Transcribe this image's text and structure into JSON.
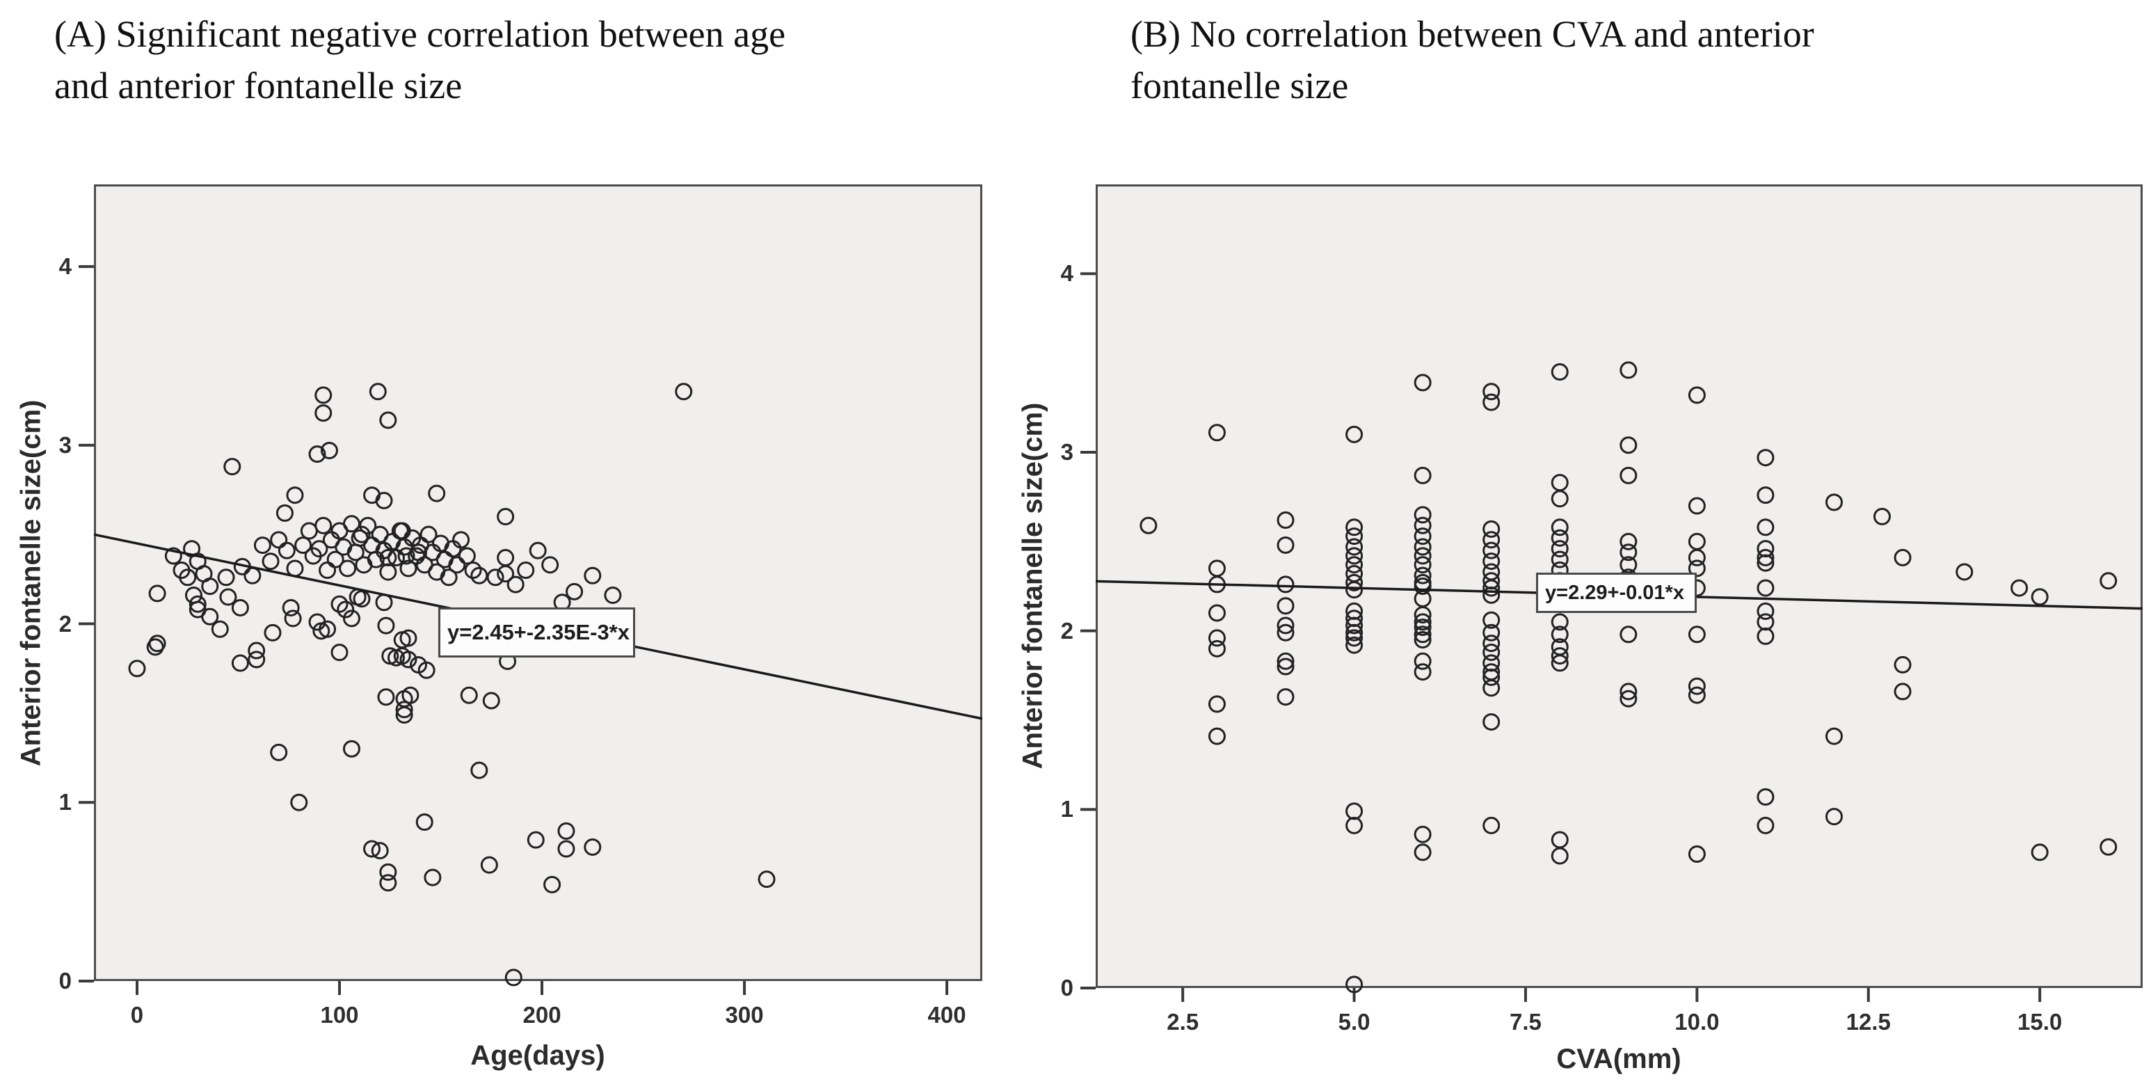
{
  "figure": {
    "background_color": "#ffffff",
    "plot_background_color": "#f0efee",
    "plot_border_color": "#4d4d4d",
    "marker_color": "#222222",
    "line_color": "#1a1a1a",
    "text_color": "#111111"
  },
  "chart_data": [
    {
      "type": "scatter",
      "panel_label": "A",
      "title_lines": [
        "(A) Significant negative correlation between age",
        "and anterior fontanelle size"
      ],
      "xlabel": "Age(days)",
      "ylabel": "Anterior fontanelle size(cm)",
      "x_tick_values": [
        0,
        100,
        200,
        300,
        400
      ],
      "x_tick_labels": [
        "0",
        "100",
        "200",
        "300",
        "400"
      ],
      "y_tick_values": [
        0,
        1,
        2,
        3,
        4
      ],
      "y_tick_labels": [
        "0",
        "1",
        "2",
        "3",
        "4"
      ],
      "xlim": [
        -21.3,
        417.5
      ],
      "ylim": [
        0,
        4.46
      ],
      "grid": false,
      "legend": "none",
      "regression": {
        "label": "y=2.45+-2.35E-3*x",
        "intercept": 2.45,
        "slope": -0.00235
      },
      "points": [
        [
          92,
          3.28
        ],
        [
          92,
          3.18
        ],
        [
          119,
          3.3
        ],
        [
          124,
          3.14
        ],
        [
          270,
          3.3
        ],
        [
          89,
          2.95
        ],
        [
          95,
          2.97
        ],
        [
          47,
          2.88
        ],
        [
          78,
          2.72
        ],
        [
          73,
          2.62
        ],
        [
          116,
          2.72
        ],
        [
          122,
          2.69
        ],
        [
          148,
          2.73
        ],
        [
          182,
          2.6
        ],
        [
          111,
          2.5
        ],
        [
          131,
          2.52
        ],
        [
          27,
          2.42
        ],
        [
          30,
          2.35
        ],
        [
          33,
          2.28
        ],
        [
          25,
          2.26
        ],
        [
          36,
          2.21
        ],
        [
          28,
          2.16
        ],
        [
          44,
          2.26
        ],
        [
          45,
          2.15
        ],
        [
          22,
          2.3
        ],
        [
          18,
          2.38
        ],
        [
          52,
          2.32
        ],
        [
          57,
          2.27
        ],
        [
          62,
          2.44
        ],
        [
          66,
          2.35
        ],
        [
          70,
          2.47
        ],
        [
          74,
          2.41
        ],
        [
          78,
          2.31
        ],
        [
          82,
          2.44
        ],
        [
          85,
          2.52
        ],
        [
          87,
          2.38
        ],
        [
          90,
          2.42
        ],
        [
          92,
          2.55
        ],
        [
          94,
          2.3
        ],
        [
          96,
          2.47
        ],
        [
          98,
          2.36
        ],
        [
          100,
          2.52
        ],
        [
          102,
          2.43
        ],
        [
          104,
          2.31
        ],
        [
          106,
          2.56
        ],
        [
          108,
          2.4
        ],
        [
          110,
          2.48
        ],
        [
          112,
          2.33
        ],
        [
          114,
          2.55
        ],
        [
          116,
          2.44
        ],
        [
          118,
          2.36
        ],
        [
          120,
          2.5
        ],
        [
          122,
          2.41
        ],
        [
          124,
          2.29
        ],
        [
          126,
          2.46
        ],
        [
          128,
          2.37
        ],
        [
          130,
          2.52
        ],
        [
          132,
          2.43
        ],
        [
          134,
          2.31
        ],
        [
          136,
          2.48
        ],
        [
          138,
          2.38
        ],
        [
          140,
          2.44
        ],
        [
          142,
          2.33
        ],
        [
          144,
          2.5
        ],
        [
          146,
          2.4
        ],
        [
          148,
          2.29
        ],
        [
          150,
          2.45
        ],
        [
          152,
          2.36
        ],
        [
          154,
          2.26
        ],
        [
          156,
          2.42
        ],
        [
          158,
          2.33
        ],
        [
          160,
          2.47
        ],
        [
          163,
          2.38
        ],
        [
          166,
          2.3
        ],
        [
          169,
          2.27
        ],
        [
          177,
          2.26
        ],
        [
          124,
          2.37
        ],
        [
          133,
          2.38
        ],
        [
          139,
          2.4
        ],
        [
          182,
          2.37
        ],
        [
          182,
          2.28
        ],
        [
          225,
          2.27
        ],
        [
          216,
          2.18
        ],
        [
          235,
          2.16
        ],
        [
          210,
          2.12
        ],
        [
          187,
          2.22
        ],
        [
          192,
          2.3
        ],
        [
          198,
          2.41
        ],
        [
          204,
          2.33
        ],
        [
          10,
          2.17
        ],
        [
          30,
          2.11
        ],
        [
          30,
          2.08
        ],
        [
          36,
          2.04
        ],
        [
          41,
          1.97
        ],
        [
          51,
          2.09
        ],
        [
          67,
          1.95
        ],
        [
          59,
          1.85
        ],
        [
          59,
          1.8
        ],
        [
          9,
          1.87
        ],
        [
          10,
          1.89
        ],
        [
          0,
          1.75
        ],
        [
          51,
          1.78
        ],
        [
          76,
          2.09
        ],
        [
          77,
          2.03
        ],
        [
          89,
          2.01
        ],
        [
          91,
          1.96
        ],
        [
          94,
          1.97
        ],
        [
          100,
          1.84
        ],
        [
          100,
          2.11
        ],
        [
          103,
          2.08
        ],
        [
          106,
          2.03
        ],
        [
          109,
          2.15
        ],
        [
          111,
          2.14
        ],
        [
          122,
          2.12
        ],
        [
          123,
          1.99
        ],
        [
          125,
          1.82
        ],
        [
          128,
          1.81
        ],
        [
          131,
          1.82
        ],
        [
          134,
          1.8
        ],
        [
          139,
          1.77
        ],
        [
          131,
          1.91
        ],
        [
          134,
          1.92
        ],
        [
          143,
          1.74
        ],
        [
          183,
          1.79
        ],
        [
          132,
          1.58
        ],
        [
          135,
          1.6
        ],
        [
          132,
          1.52
        ],
        [
          132,
          1.49
        ],
        [
          123,
          1.59
        ],
        [
          164,
          1.6
        ],
        [
          175,
          1.57
        ],
        [
          70,
          1.28
        ],
        [
          106,
          1.3
        ],
        [
          80,
          1.0
        ],
        [
          169,
          1.18
        ],
        [
          142,
          0.89
        ],
        [
          116,
          0.74
        ],
        [
          120,
          0.73
        ],
        [
          124,
          0.61
        ],
        [
          124,
          0.55
        ],
        [
          146,
          0.58
        ],
        [
          174,
          0.65
        ],
        [
          197,
          0.79
        ],
        [
          212,
          0.84
        ],
        [
          212,
          0.74
        ],
        [
          225,
          0.75
        ],
        [
          205,
          0.54
        ],
        [
          311,
          0.57
        ],
        [
          186,
          0.02
        ]
      ]
    },
    {
      "type": "scatter",
      "panel_label": "B",
      "title_lines": [
        "(B) No correlation between CVA and anterior",
        "fontanelle size"
      ],
      "xlabel": "CVA(mm)",
      "ylabel": "Anterior fontanelle size(cm)",
      "x_tick_values": [
        2.5,
        5.0,
        7.5,
        10.0,
        12.5,
        15.0
      ],
      "x_tick_labels": [
        "2.5",
        "5.0",
        "7.5",
        "10.0",
        "12.5",
        "15.0"
      ],
      "y_tick_values": [
        0,
        1,
        2,
        3,
        4
      ],
      "y_tick_labels": [
        "0",
        "1",
        "2",
        "3",
        "4"
      ],
      "xlim": [
        1.23,
        16.5
      ],
      "ylim": [
        0,
        4.5
      ],
      "grid": false,
      "legend": "none",
      "regression": {
        "label": "y=2.29+-0.01*x",
        "intercept": 2.29,
        "slope": -0.01
      },
      "points": [
        [
          2,
          2.59
        ],
        [
          3,
          3.11
        ],
        [
          3,
          2.35
        ],
        [
          3,
          2.26
        ],
        [
          3,
          2.1
        ],
        [
          3,
          1.96
        ],
        [
          3,
          1.9
        ],
        [
          3,
          1.59
        ],
        [
          3,
          1.41
        ],
        [
          4,
          2.62
        ],
        [
          4,
          2.48
        ],
        [
          4,
          2.26
        ],
        [
          4,
          2.14
        ],
        [
          4,
          2.03
        ],
        [
          4,
          1.99
        ],
        [
          4,
          1.83
        ],
        [
          4,
          1.8
        ],
        [
          4,
          1.63
        ],
        [
          5,
          3.1
        ],
        [
          5,
          2.58
        ],
        [
          5,
          2.53
        ],
        [
          5,
          2.47
        ],
        [
          5,
          2.42
        ],
        [
          5,
          2.37
        ],
        [
          5,
          2.32
        ],
        [
          5,
          2.27
        ],
        [
          5,
          2.23
        ],
        [
          5,
          2.11
        ],
        [
          5,
          2.07
        ],
        [
          5,
          2.03
        ],
        [
          5,
          1.99
        ],
        [
          5,
          1.96
        ],
        [
          5,
          1.92
        ],
        [
          5,
          0.99
        ],
        [
          5,
          0.91
        ],
        [
          5,
          0.02
        ],
        [
          6,
          3.39
        ],
        [
          6,
          2.87
        ],
        [
          6,
          2.65
        ],
        [
          6,
          2.59
        ],
        [
          6,
          2.53
        ],
        [
          6,
          2.47
        ],
        [
          6,
          2.42
        ],
        [
          6,
          2.37
        ],
        [
          6,
          2.31
        ],
        [
          6,
          2.27
        ],
        [
          6,
          2.25
        ],
        [
          6,
          2.18
        ],
        [
          6,
          2.09
        ],
        [
          6,
          2.05
        ],
        [
          6,
          2.02
        ],
        [
          6,
          1.98
        ],
        [
          6,
          1.95
        ],
        [
          6,
          1.83
        ],
        [
          6,
          1.77
        ],
        [
          6,
          0.86
        ],
        [
          6,
          0.76
        ],
        [
          7,
          3.34
        ],
        [
          7,
          3.28
        ],
        [
          7,
          2.57
        ],
        [
          7,
          2.51
        ],
        [
          7,
          2.45
        ],
        [
          7,
          2.39
        ],
        [
          7,
          2.33
        ],
        [
          7,
          2.28
        ],
        [
          7,
          2.24
        ],
        [
          7,
          2.2
        ],
        [
          7,
          2.06
        ],
        [
          7,
          1.99
        ],
        [
          7,
          1.93
        ],
        [
          7,
          1.88
        ],
        [
          7,
          1.82
        ],
        [
          7,
          1.77
        ],
        [
          7,
          1.74
        ],
        [
          7,
          1.68
        ],
        [
          7,
          1.49
        ],
        [
          7,
          0.91
        ],
        [
          8,
          3.45
        ],
        [
          8,
          2.83
        ],
        [
          8,
          2.74
        ],
        [
          8,
          2.58
        ],
        [
          8,
          2.52
        ],
        [
          8,
          2.46
        ],
        [
          8,
          2.4
        ],
        [
          8,
          2.34
        ],
        [
          8,
          2.28
        ],
        [
          8,
          2.22
        ],
        [
          8,
          2.16
        ],
        [
          8,
          2.05
        ],
        [
          8,
          1.98
        ],
        [
          8,
          1.91
        ],
        [
          8,
          1.86
        ],
        [
          8,
          1.82
        ],
        [
          8,
          0.83
        ],
        [
          8,
          0.74
        ],
        [
          9,
          3.46
        ],
        [
          9,
          3.04
        ],
        [
          9,
          2.87
        ],
        [
          9,
          2.5
        ],
        [
          9,
          2.44
        ],
        [
          9,
          2.37
        ],
        [
          9,
          2.3
        ],
        [
          9,
          1.98
        ],
        [
          9,
          1.66
        ],
        [
          9,
          1.62
        ],
        [
          10,
          3.32
        ],
        [
          10,
          2.7
        ],
        [
          10,
          2.5
        ],
        [
          10,
          2.41
        ],
        [
          10,
          2.35
        ],
        [
          10,
          2.24
        ],
        [
          10,
          1.98
        ],
        [
          10,
          1.69
        ],
        [
          10,
          1.64
        ],
        [
          10,
          0.75
        ],
        [
          11,
          2.97
        ],
        [
          11,
          2.76
        ],
        [
          11,
          2.58
        ],
        [
          11,
          2.46
        ],
        [
          11,
          2.41
        ],
        [
          11,
          2.38
        ],
        [
          11,
          2.24
        ],
        [
          11,
          2.11
        ],
        [
          11,
          2.05
        ],
        [
          11,
          1.97
        ],
        [
          11,
          1.07
        ],
        [
          11,
          0.91
        ],
        [
          12,
          2.72
        ],
        [
          12,
          1.41
        ],
        [
          12,
          0.96
        ],
        [
          12.7,
          2.64
        ],
        [
          13,
          2.41
        ],
        [
          13,
          1.81
        ],
        [
          13,
          1.66
        ],
        [
          13.9,
          2.33
        ],
        [
          14.7,
          2.24
        ],
        [
          15,
          2.19
        ],
        [
          15,
          0.76
        ],
        [
          16,
          2.28
        ],
        [
          16,
          0.79
        ]
      ]
    }
  ]
}
